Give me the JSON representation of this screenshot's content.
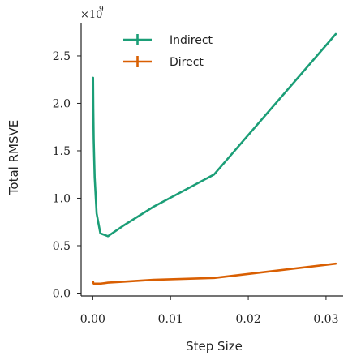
{
  "chart_data": {
    "type": "line",
    "xlabel": "Step Size",
    "ylabel": "Total RMSVE",
    "y_multiplier": "×10",
    "y_multiplier_exp": "9",
    "xlim": [
      -0.0015,
      0.0322
    ],
    "ylim": [
      -0.03,
      2.85
    ],
    "xticks": [
      0.0,
      0.01,
      0.02,
      0.03
    ],
    "xtick_labels": [
      "0.00",
      "0.01",
      "0.02",
      "0.03"
    ],
    "yticks": [
      0.0,
      0.5,
      1.0,
      1.5,
      2.0,
      2.5
    ],
    "ytick_labels": [
      "0.0",
      "0.5",
      "1.0",
      "1.5",
      "2.0",
      "2.5"
    ],
    "legend_position": "top-left",
    "series": [
      {
        "name": "Indirect",
        "color": "#1b9e77",
        "x": [
          3.05e-05,
          6.1e-05,
          0.000122,
          0.000244,
          0.000488,
          0.000977,
          0.00195,
          0.00391,
          0.00781,
          0.0156,
          0.03125
        ],
        "y": [
          2.27,
          1.95,
          1.62,
          1.22,
          0.84,
          0.63,
          0.6,
          0.71,
          0.91,
          1.25,
          2.73
        ]
      },
      {
        "name": "Direct",
        "color": "#d95f02",
        "x": [
          3.05e-05,
          6.1e-05,
          0.000122,
          0.000244,
          0.000488,
          0.000977,
          0.00195,
          0.00391,
          0.00781,
          0.0156,
          0.03125
        ],
        "y": [
          0.12,
          0.11,
          0.1,
          0.1,
          0.1,
          0.1,
          0.11,
          0.12,
          0.14,
          0.16,
          0.31
        ]
      }
    ]
  }
}
